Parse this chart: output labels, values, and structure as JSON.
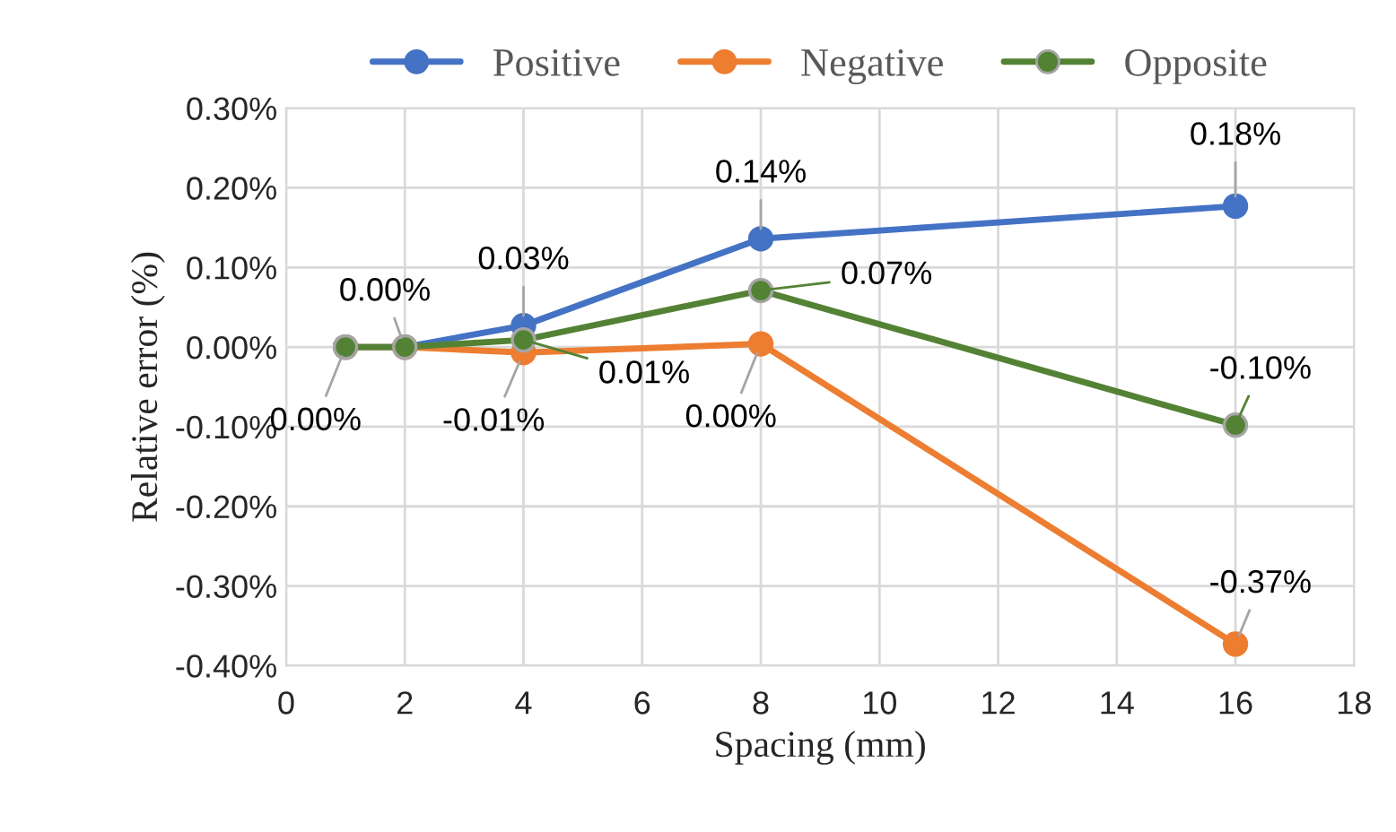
{
  "chart_data": {
    "type": "line",
    "xlabel": "Spacing (mm)",
    "ylabel": "Relative error (%)",
    "x": [
      1,
      2,
      4,
      8,
      16
    ],
    "series": [
      {
        "name": "Positive",
        "color": "#4472c4",
        "values": [
          0,
          0,
          0.027,
          0.136,
          0.177
        ],
        "value_labels": [
          null,
          "0.00%",
          "0.03%",
          "0.14%",
          "0.18%"
        ]
      },
      {
        "name": "Negative",
        "color": "#ed7d31",
        "values": [
          0,
          0,
          -0.007,
          0.004,
          -0.373
        ],
        "value_labels": [
          "0.00%",
          null,
          "-0.01%",
          "0.00%",
          "-0.37%"
        ]
      },
      {
        "name": "Opposite",
        "color": "#548235",
        "values": [
          0,
          0,
          0.009,
          0.071,
          -0.098
        ],
        "value_labels": [
          null,
          null,
          "0.01%",
          "0.07%",
          "-0.10%"
        ]
      }
    ],
    "xlim": [
      0,
      18
    ],
    "xticks": [
      0,
      2,
      4,
      6,
      8,
      10,
      12,
      14,
      16,
      18
    ],
    "ylim": [
      -0.4,
      0.3
    ],
    "yticks": [
      {
        "value": -0.4,
        "label": "-0.40%"
      },
      {
        "value": -0.3,
        "label": "-0.30%"
      },
      {
        "value": -0.2,
        "label": "-0.20%"
      },
      {
        "value": -0.1,
        "label": "-0.10%"
      },
      {
        "value": 0,
        "label": "0.00%"
      },
      {
        "value": 0.1,
        "label": "0.10%"
      },
      {
        "value": 0.2,
        "label": "0.20%"
      },
      {
        "value": 0.3,
        "label": "0.30%"
      }
    ],
    "grid": true,
    "legend": "top",
    "marker": "circle",
    "line_style": "solid"
  }
}
